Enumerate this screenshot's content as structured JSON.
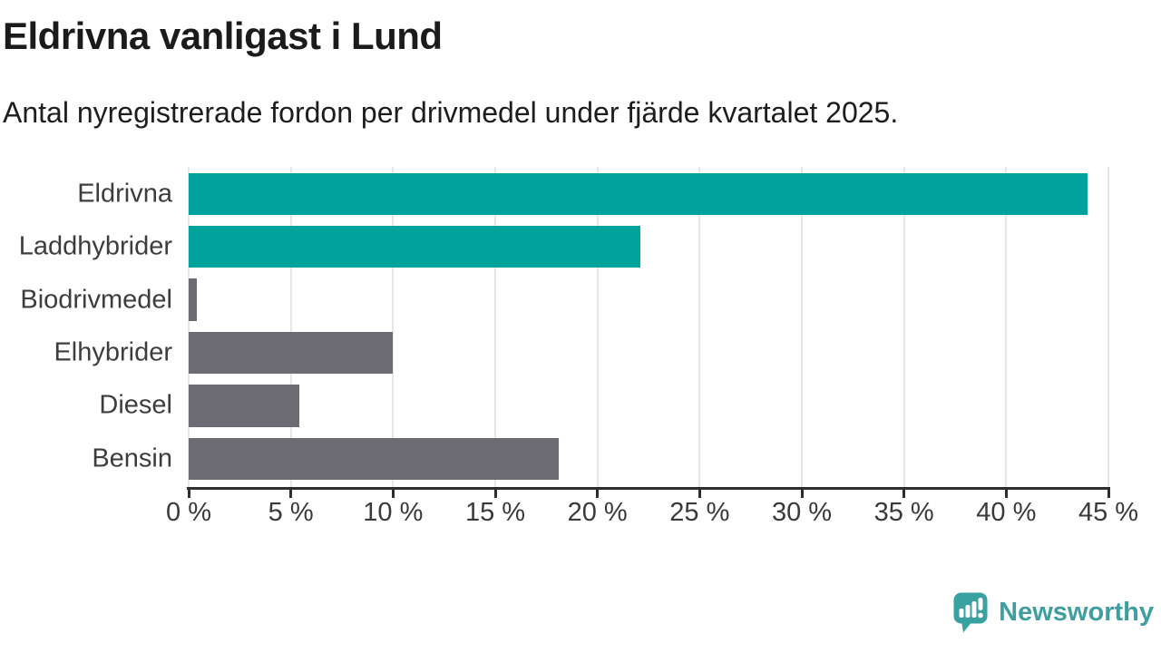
{
  "chart_data": {
    "type": "bar",
    "orientation": "horizontal",
    "title": "Eldrivna vanligast i Lund",
    "subtitle": "Antal nyregistrerade fordon per drivmedel under fjärde kvartalet 2025.",
    "categories": [
      "Eldrivna",
      "Laddhybrider",
      "Biodrivmedel",
      "Elhybrider",
      "Diesel",
      "Bensin"
    ],
    "values": [
      44.0,
      22.1,
      0.4,
      10.0,
      5.4,
      18.1
    ],
    "unit": "%",
    "bar_colors": [
      "#00a39b",
      "#00a39b",
      "#6c6b71",
      "#6c6b71",
      "#6c6b71",
      "#6c6b71"
    ],
    "highlight_color": "#00a39b",
    "default_color": "#6c6b71",
    "xlabel": "",
    "ylabel": "",
    "xlim": [
      0,
      45
    ],
    "tick_step": 5,
    "tick_labels": [
      "0 %",
      "5 %",
      "10 %",
      "15 %",
      "20 %",
      "25 %",
      "30 %",
      "35 %",
      "40 %",
      "45 %"
    ],
    "grid": true,
    "legend": false
  },
  "footer": {
    "brand": "Newsworthy",
    "brand_color": "#3f9fa0",
    "logo_icon": "newsworthy-chart-bubble-icon"
  }
}
